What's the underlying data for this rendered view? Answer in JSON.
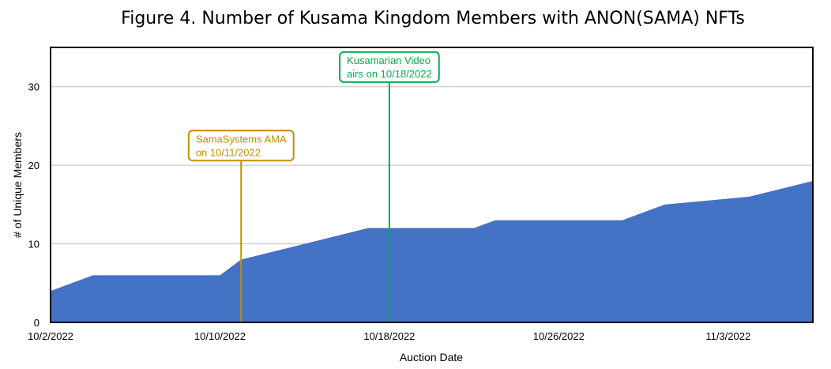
{
  "chart_data": {
    "type": "area",
    "title": "Figure 4. Number of Kusama Kingdom Members with ANON(SAMA) NFTs",
    "xlabel": "Auction Date",
    "ylabel": "# of Unique Members",
    "x_range": [
      "2022-10-02",
      "2022-11-07"
    ],
    "ylim": [
      0,
      35
    ],
    "x_ticks": [
      {
        "date": "2022-10-02",
        "label": "10/2/2022"
      },
      {
        "date": "2022-10-10",
        "label": "10/10/2022"
      },
      {
        "date": "2022-10-18",
        "label": "10/18/2022"
      },
      {
        "date": "2022-10-26",
        "label": "10/26/2022"
      },
      {
        "date": "2022-11-03",
        "label": "11/3/2022"
      }
    ],
    "y_ticks": [
      0,
      10,
      20,
      30
    ],
    "grid": true,
    "series": [
      {
        "color": "#4472C4",
        "points": [
          {
            "x": "2022-10-02",
            "y": 4
          },
          {
            "x": "2022-10-04",
            "y": 6
          },
          {
            "x": "2022-10-10",
            "y": 6
          },
          {
            "x": "2022-10-11",
            "y": 8
          },
          {
            "x": "2022-10-17",
            "y": 12
          },
          {
            "x": "2022-10-22",
            "y": 12
          },
          {
            "x": "2022-10-23",
            "y": 13
          },
          {
            "x": "2022-10-29",
            "y": 13
          },
          {
            "x": "2022-10-31",
            "y": 15
          },
          {
            "x": "2022-11-04",
            "y": 16
          },
          {
            "x": "2022-11-07",
            "y": 18
          }
        ]
      }
    ],
    "annotations": [
      {
        "lines": [
          "SamaSystems AMA",
          "on 10/11/2022"
        ],
        "date": "2022-10-11",
        "label_y": 22.5,
        "color": "#BF9000"
      },
      {
        "lines": [
          "Kusamarian Video",
          "airs on 10/18/2022"
        ],
        "date": "2022-10-18",
        "label_y": 32.5,
        "color": "#00B050"
      }
    ]
  }
}
